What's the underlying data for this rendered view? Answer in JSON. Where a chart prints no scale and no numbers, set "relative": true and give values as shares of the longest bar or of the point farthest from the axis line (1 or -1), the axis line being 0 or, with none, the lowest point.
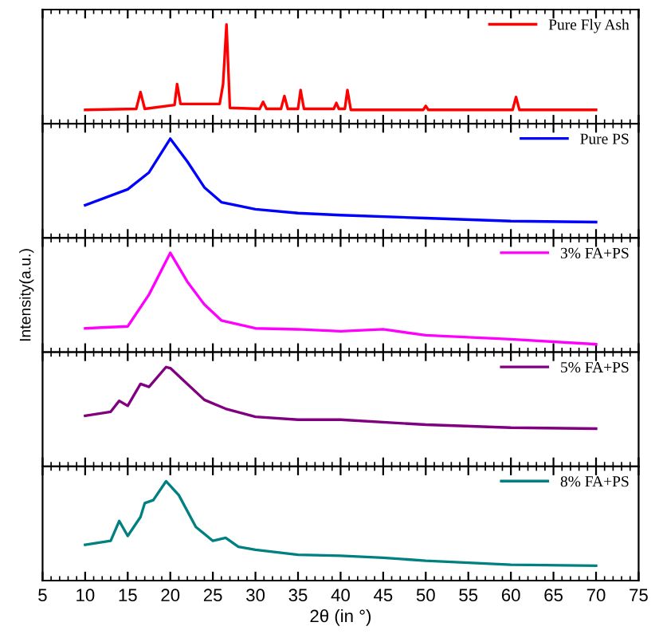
{
  "chart_data": [
    {
      "type": "line",
      "relative": true,
      "xlim": [
        5,
        75
      ],
      "xticks": [
        5,
        10,
        15,
        20,
        25,
        30,
        35,
        40,
        45,
        50,
        55,
        60,
        65,
        70,
        75
      ],
      "tick_labels": false,
      "legend": "top right",
      "grid": false,
      "series": [
        {
          "name": "Pure Fly Ash",
          "color": "#ff0000",
          "x": [
            10,
            16,
            16.5,
            17,
            20.5,
            20.8,
            21.2,
            25.8,
            26.2,
            26.6,
            27.0,
            30.5,
            30.9,
            31.3,
            33.0,
            33.4,
            33.8,
            35.0,
            35.3,
            35.7,
            39.2,
            39.5,
            39.8,
            40.5,
            40.8,
            41.2,
            49.7,
            50,
            50.3,
            60.2,
            60.6,
            61.0,
            70
          ],
          "values": [
            0.14,
            0.15,
            0.32,
            0.15,
            0.19,
            0.4,
            0.2,
            0.2,
            0.4,
            1.0,
            0.16,
            0.15,
            0.22,
            0.15,
            0.15,
            0.28,
            0.15,
            0.15,
            0.34,
            0.15,
            0.15,
            0.21,
            0.15,
            0.15,
            0.34,
            0.14,
            0.14,
            0.18,
            0.14,
            0.14,
            0.27,
            0.14,
            0.14
          ]
        }
      ]
    },
    {
      "type": "line",
      "relative": true,
      "xlim": [
        5,
        75
      ],
      "xticks": [
        5,
        10,
        15,
        20,
        25,
        30,
        35,
        40,
        45,
        50,
        55,
        60,
        65,
        70,
        75
      ],
      "tick_labels": false,
      "legend": "top right",
      "grid": false,
      "series": [
        {
          "name": "Pure PS",
          "color": "#0000ff",
          "x": [
            10,
            15,
            17.5,
            20,
            22,
            24,
            26,
            30,
            35,
            40,
            50,
            60,
            70
          ],
          "values": [
            0.33,
            0.49,
            0.66,
            1.0,
            0.77,
            0.51,
            0.36,
            0.29,
            0.25,
            0.23,
            0.2,
            0.17,
            0.16
          ]
        }
      ]
    },
    {
      "type": "line",
      "relative": true,
      "xlim": [
        5,
        75
      ],
      "xticks": [
        5,
        10,
        15,
        20,
        25,
        30,
        35,
        40,
        45,
        50,
        55,
        60,
        65,
        70,
        75
      ],
      "tick_labels": false,
      "legend": "top right",
      "grid": false,
      "ylabel": "Intensity(a.u.)",
      "series": [
        {
          "name": "3% FA+PS",
          "color": "#ff00ff",
          "x": [
            10,
            15,
            17.5,
            20,
            22,
            24,
            26,
            30,
            35,
            40,
            45,
            50,
            60,
            70
          ],
          "values": [
            0.24,
            0.26,
            0.58,
            1.0,
            0.71,
            0.48,
            0.32,
            0.24,
            0.23,
            0.21,
            0.23,
            0.17,
            0.13,
            0.08
          ]
        }
      ]
    },
    {
      "type": "line",
      "relative": true,
      "xlim": [
        5,
        75
      ],
      "xticks": [
        5,
        10,
        15,
        20,
        25,
        30,
        35,
        40,
        45,
        50,
        55,
        60,
        65,
        70,
        75
      ],
      "tick_labels": false,
      "legend": "top right",
      "grid": false,
      "series": [
        {
          "name": "5% FA+PS",
          "color": "#800080",
          "x": [
            10,
            13,
            14,
            15,
            16.5,
            17.5,
            19.5,
            20,
            22,
            24,
            26.5,
            30,
            35,
            40,
            50,
            60,
            70
          ],
          "values": [
            0.51,
            0.55,
            0.66,
            0.61,
            0.83,
            0.8,
            1.0,
            0.99,
            0.83,
            0.67,
            0.58,
            0.5,
            0.47,
            0.47,
            0.42,
            0.39,
            0.38
          ]
        }
      ]
    },
    {
      "type": "line",
      "relative": true,
      "xlim": [
        5,
        75
      ],
      "xticks": [
        5,
        10,
        15,
        20,
        25,
        30,
        35,
        40,
        45,
        50,
        55,
        60,
        65,
        70,
        75
      ],
      "tick_labels": "x",
      "legend": "top right",
      "grid": false,
      "xlabel": "2θ (in °)",
      "series": [
        {
          "name": "8% FA+PS",
          "color": "#008080",
          "x": [
            10,
            13,
            14,
            15,
            16.5,
            17,
            18,
            19.5,
            21,
            23,
            25,
            26.5,
            28,
            30,
            35,
            40,
            45,
            50,
            60,
            70
          ],
          "values": [
            0.36,
            0.4,
            0.6,
            0.45,
            0.64,
            0.78,
            0.81,
            1.0,
            0.86,
            0.54,
            0.4,
            0.43,
            0.34,
            0.31,
            0.26,
            0.25,
            0.23,
            0.2,
            0.16,
            0.15
          ]
        }
      ]
    }
  ]
}
